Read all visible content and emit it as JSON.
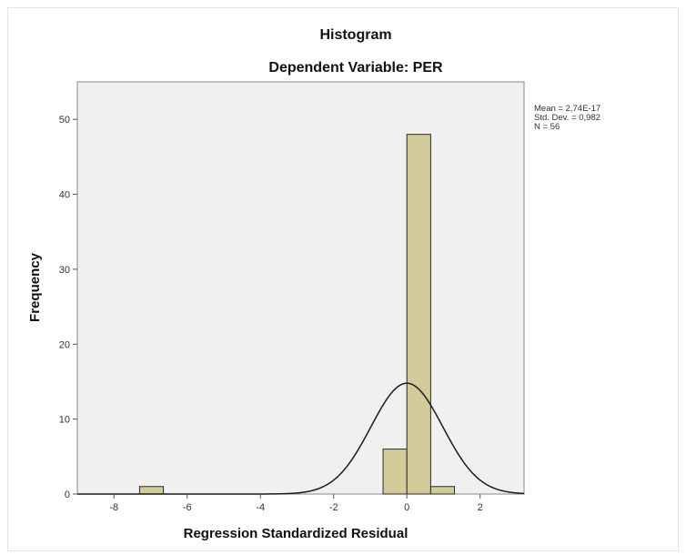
{
  "chart_data": {
    "type": "bar",
    "subtype": "histogram",
    "title": "Histogram",
    "subtitle": "Dependent Variable: PER",
    "xlabel": "Regression Standardized Residual",
    "ylabel": "Frequency",
    "xlim": [
      -9.0,
      3.2
    ],
    "ylim": [
      0,
      55
    ],
    "x_ticks": [
      -8,
      -6,
      -4,
      -2,
      0,
      2
    ],
    "y_ticks": [
      0,
      10,
      20,
      30,
      40,
      50
    ],
    "bins": [
      {
        "start": -7.3,
        "end": -6.65,
        "count": 1
      },
      {
        "start": -0.65,
        "end": 0.0,
        "count": 6
      },
      {
        "start": 0.0,
        "end": 0.65,
        "count": 48
      },
      {
        "start": 0.65,
        "end": 1.3,
        "count": 1
      }
    ],
    "normal_curve": {
      "mean": 0.0,
      "sd": 0.982,
      "n": 56,
      "bin_width": 0.65
    },
    "stats": [
      "Mean = 2,74E-17",
      "Std. Dev. = 0,982",
      "N = 56"
    ],
    "grid": false,
    "colors": {
      "bar_fill": "#d2cb9a",
      "bar_stroke": "#2a2a2a",
      "plot_bg": "#f0f0f0",
      "curve": "#1a1a1a"
    }
  }
}
